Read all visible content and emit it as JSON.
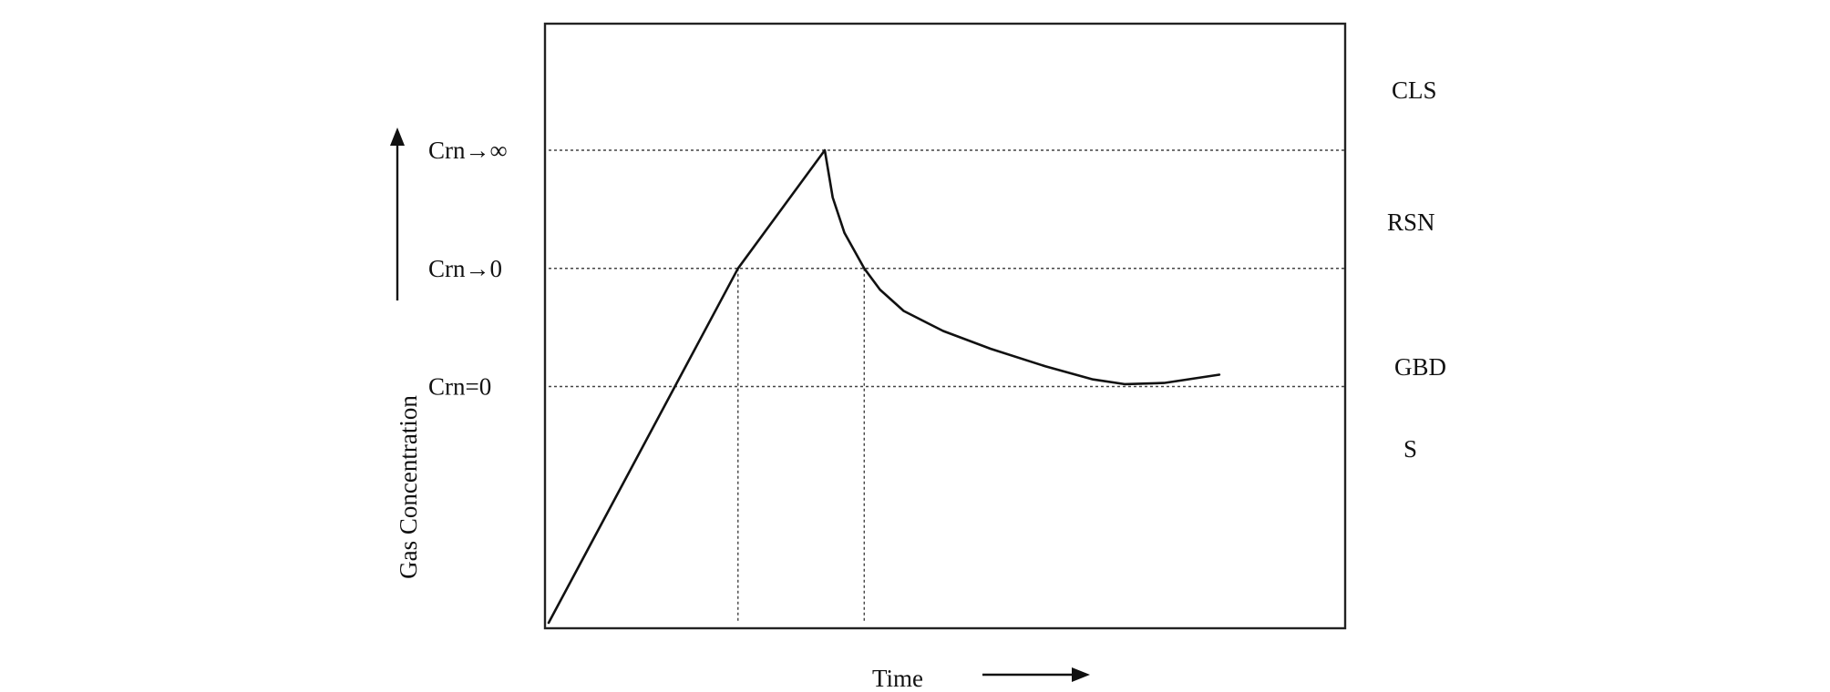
{
  "chart_data": {
    "type": "line",
    "title": "",
    "xlabel": "Time",
    "ylabel": "Gas Concentration",
    "grid": false,
    "y_levels": [
      {
        "label": "Crn→∞",
        "value": 4
      },
      {
        "label": "Crn→0",
        "value": 3
      },
      {
        "label": "Crn=0",
        "value": 2
      }
    ],
    "regions": [
      {
        "label": "CLS"
      },
      {
        "label": "RSN"
      },
      {
        "label": "GBD"
      },
      {
        "label": "S"
      }
    ],
    "xlim": [
      0,
      10
    ],
    "ylim": [
      0,
      5
    ],
    "series": [
      {
        "x": [
          0,
          2.4,
          3.5,
          3.6,
          3.75,
          4.0,
          4.2,
          4.5,
          5.0,
          5.6,
          6.3,
          6.9,
          7.3,
          7.8,
          8.5
        ],
        "y": [
          0,
          3,
          4,
          3.6,
          3.3,
          3.0,
          2.82,
          2.64,
          2.47,
          2.32,
          2.17,
          2.06,
          2.02,
          2.03,
          2.1
        ]
      }
    ],
    "markers": [
      2.4,
      4.0
    ]
  },
  "colors": {
    "line": "#111111",
    "background": "#ffffff"
  }
}
